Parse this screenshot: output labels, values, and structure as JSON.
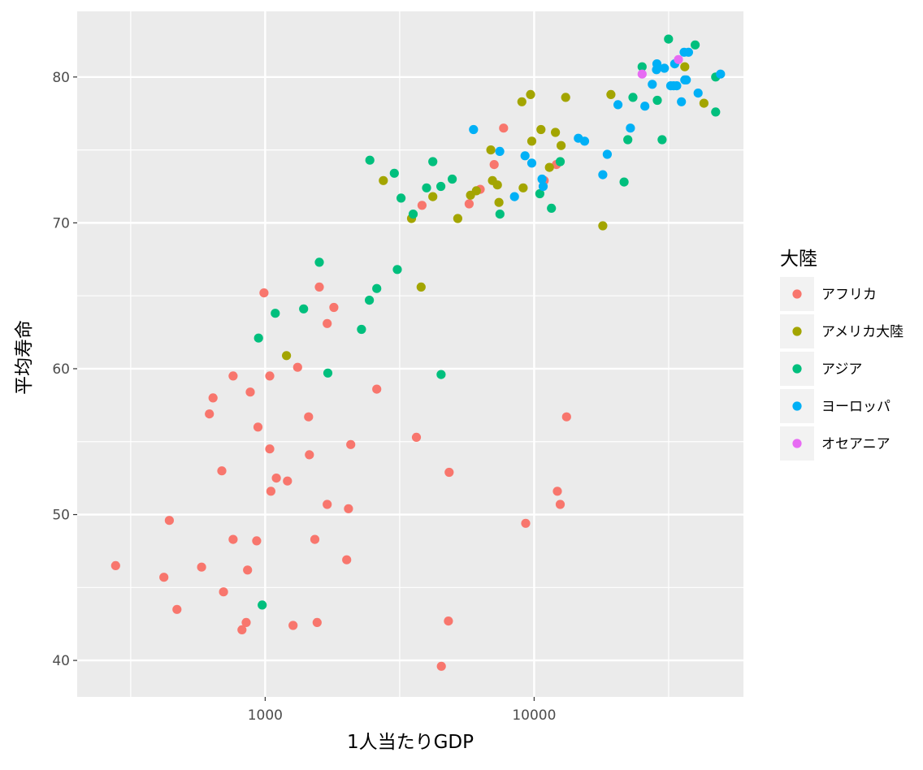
{
  "chart_data": {
    "type": "scatter",
    "title": "",
    "xlabel": "1人当たりGDP",
    "ylabel": "平均寿命",
    "x_scale": "log10",
    "xlim": [
      200,
      60000
    ],
    "ylim": [
      37.5,
      84.5
    ],
    "x_ticks": [
      1000,
      10000
    ],
    "x_tick_labels": [
      "1000",
      "10000"
    ],
    "y_ticks": [
      40,
      50,
      60,
      70,
      80
    ],
    "y_tick_labels": [
      "40",
      "50",
      "60",
      "70",
      "80"
    ],
    "grid": true,
    "legend": {
      "title": "大陸",
      "placement": "right",
      "entries": [
        {
          "label": "アフリカ",
          "color": "#F8766D"
        },
        {
          "label": "アメリカ大陸",
          "color": "#A3A500"
        },
        {
          "label": "アジア",
          "color": "#00BF7D"
        },
        {
          "label": "ヨーロッパ",
          "color": "#00B0F6"
        },
        {
          "label": "オセアニア",
          "color": "#E76BF3"
        }
      ]
    },
    "series": [
      {
        "name": "アフリカ",
        "color": "#F8766D",
        "points": [
          [
            278,
            46.5
          ],
          [
            420,
            45.7
          ],
          [
            440,
            49.6
          ],
          [
            470,
            43.5
          ],
          [
            580,
            46.4
          ],
          [
            620,
            56.9
          ],
          [
            640,
            58.0
          ],
          [
            690,
            53.0
          ],
          [
            700,
            44.7
          ],
          [
            760,
            59.5
          ],
          [
            760,
            48.3
          ],
          [
            820,
            42.1
          ],
          [
            850,
            42.6
          ],
          [
            860,
            46.2
          ],
          [
            880,
            58.4
          ],
          [
            930,
            48.2
          ],
          [
            940,
            56.0
          ],
          [
            990,
            65.2
          ],
          [
            1040,
            54.5
          ],
          [
            1040,
            59.5
          ],
          [
            1050,
            51.6
          ],
          [
            1100,
            52.5
          ],
          [
            1210,
            52.3
          ],
          [
            1270,
            42.4
          ],
          [
            1320,
            60.1
          ],
          [
            1450,
            56.7
          ],
          [
            1460,
            54.1
          ],
          [
            1530,
            48.3
          ],
          [
            1560,
            42.6
          ],
          [
            1590,
            65.6
          ],
          [
            1700,
            50.7
          ],
          [
            1700,
            63.1
          ],
          [
            1800,
            64.2
          ],
          [
            2010,
            46.9
          ],
          [
            2040,
            50.4
          ],
          [
            2080,
            54.8
          ],
          [
            2600,
            58.6
          ],
          [
            3650,
            55.3
          ],
          [
            3830,
            71.2
          ],
          [
            4520,
            39.6
          ],
          [
            4800,
            42.7
          ],
          [
            4830,
            52.9
          ],
          [
            5730,
            71.3
          ],
          [
            6300,
            72.3
          ],
          [
            7100,
            74.0
          ],
          [
            7700,
            76.5
          ],
          [
            9300,
            49.4
          ],
          [
            10900,
            72.9
          ],
          [
            12100,
            74.0
          ],
          [
            12200,
            51.6
          ],
          [
            12500,
            50.7
          ],
          [
            13200,
            56.7
          ]
        ]
      },
      {
        "name": "アメリカ大陸",
        "color": "#A3A500",
        "points": [
          [
            1200,
            60.9
          ],
          [
            2750,
            72.9
          ],
          [
            3500,
            70.3
          ],
          [
            3800,
            65.6
          ],
          [
            4200,
            71.8
          ],
          [
            5200,
            70.3
          ],
          [
            5800,
            71.9
          ],
          [
            6100,
            72.2
          ],
          [
            6900,
            75.0
          ],
          [
            7000,
            72.9
          ],
          [
            7300,
            72.6
          ],
          [
            7400,
            71.4
          ],
          [
            9000,
            78.3
          ],
          [
            9100,
            72.4
          ],
          [
            9700,
            78.8
          ],
          [
            9800,
            75.6
          ],
          [
            10600,
            76.4
          ],
          [
            11400,
            73.8
          ],
          [
            12000,
            76.2
          ],
          [
            12600,
            75.3
          ],
          [
            13100,
            78.6
          ],
          [
            18000,
            69.8
          ],
          [
            19300,
            78.8
          ],
          [
            36300,
            80.7
          ],
          [
            42800,
            78.2
          ]
        ]
      },
      {
        "name": "アジア",
        "color": "#00BF7D",
        "points": [
          [
            975,
            43.8
          ],
          [
            945,
            62.1
          ],
          [
            1090,
            63.8
          ],
          [
            1390,
            64.1
          ],
          [
            1590,
            67.3
          ],
          [
            1710,
            59.7
          ],
          [
            2280,
            62.7
          ],
          [
            2440,
            64.7
          ],
          [
            2450,
            74.3
          ],
          [
            2600,
            65.5
          ],
          [
            3020,
            73.4
          ],
          [
            3100,
            66.8
          ],
          [
            3200,
            71.7
          ],
          [
            3550,
            70.6
          ],
          [
            3980,
            72.4
          ],
          [
            4200,
            74.2
          ],
          [
            4500,
            72.5
          ],
          [
            4510,
            59.6
          ],
          [
            4960,
            73.0
          ],
          [
            7460,
            70.6
          ],
          [
            10500,
            72.0
          ],
          [
            11600,
            71.0
          ],
          [
            12500,
            74.2
          ],
          [
            21600,
            72.8
          ],
          [
            22300,
            75.7
          ],
          [
            23300,
            78.6
          ],
          [
            25200,
            80.7
          ],
          [
            28700,
            78.4
          ],
          [
            29900,
            75.7
          ],
          [
            31600,
            82.6
          ],
          [
            39700,
            82.2
          ],
          [
            47300,
            80.0
          ],
          [
            47300,
            77.6
          ]
        ]
      },
      {
        "name": "ヨーロッパ",
        "color": "#00B0F6",
        "points": [
          [
            5950,
            76.4
          ],
          [
            7450,
            74.9
          ],
          [
            8450,
            71.8
          ],
          [
            9250,
            74.6
          ],
          [
            9800,
            74.1
          ],
          [
            10700,
            73.0
          ],
          [
            10800,
            72.5
          ],
          [
            14600,
            75.8
          ],
          [
            15400,
            75.6
          ],
          [
            18000,
            73.3
          ],
          [
            18700,
            74.7
          ],
          [
            20500,
            78.1
          ],
          [
            22800,
            76.5
          ],
          [
            25800,
            78.0
          ],
          [
            27500,
            79.5
          ],
          [
            28500,
            80.5
          ],
          [
            28600,
            80.9
          ],
          [
            30500,
            80.6
          ],
          [
            32200,
            79.4
          ],
          [
            33000,
            79.4
          ],
          [
            33300,
            80.9
          ],
          [
            33900,
            79.4
          ],
          [
            35300,
            78.3
          ],
          [
            36100,
            81.7
          ],
          [
            36300,
            79.8
          ],
          [
            36800,
            79.8
          ],
          [
            37500,
            81.7
          ],
          [
            40700,
            78.9
          ],
          [
            49300,
            80.2
          ]
        ]
      },
      {
        "name": "オセアニア",
        "color": "#E76BF3",
        "points": [
          [
            25200,
            80.2
          ],
          [
            34400,
            81.2
          ]
        ]
      }
    ]
  }
}
